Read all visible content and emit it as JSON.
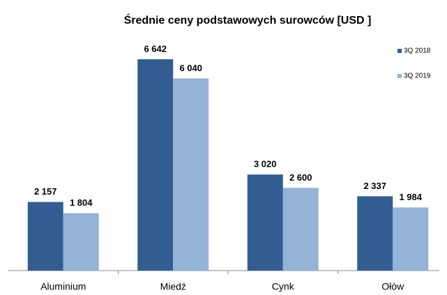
{
  "chart_data": {
    "type": "bar",
    "title": "Średnie ceny podstawowych surowców [USD ]",
    "categories": [
      "Aluminium",
      "Miedź",
      "Cynk",
      "Ołów"
    ],
    "series": [
      {
        "name": "3Q 2018",
        "color": "#335d92",
        "values": [
          2157,
          6642,
          3020,
          2337
        ],
        "value_labels": [
          "2 157",
          "6 642",
          "3 020",
          "2 337"
        ]
      },
      {
        "name": "3Q 2019",
        "color": "#95b3d7",
        "values": [
          1804,
          6040,
          2600,
          1984
        ],
        "value_labels": [
          "1 804",
          "6 040",
          "2 600",
          "1 984"
        ]
      }
    ],
    "legend": "top-right"
  }
}
